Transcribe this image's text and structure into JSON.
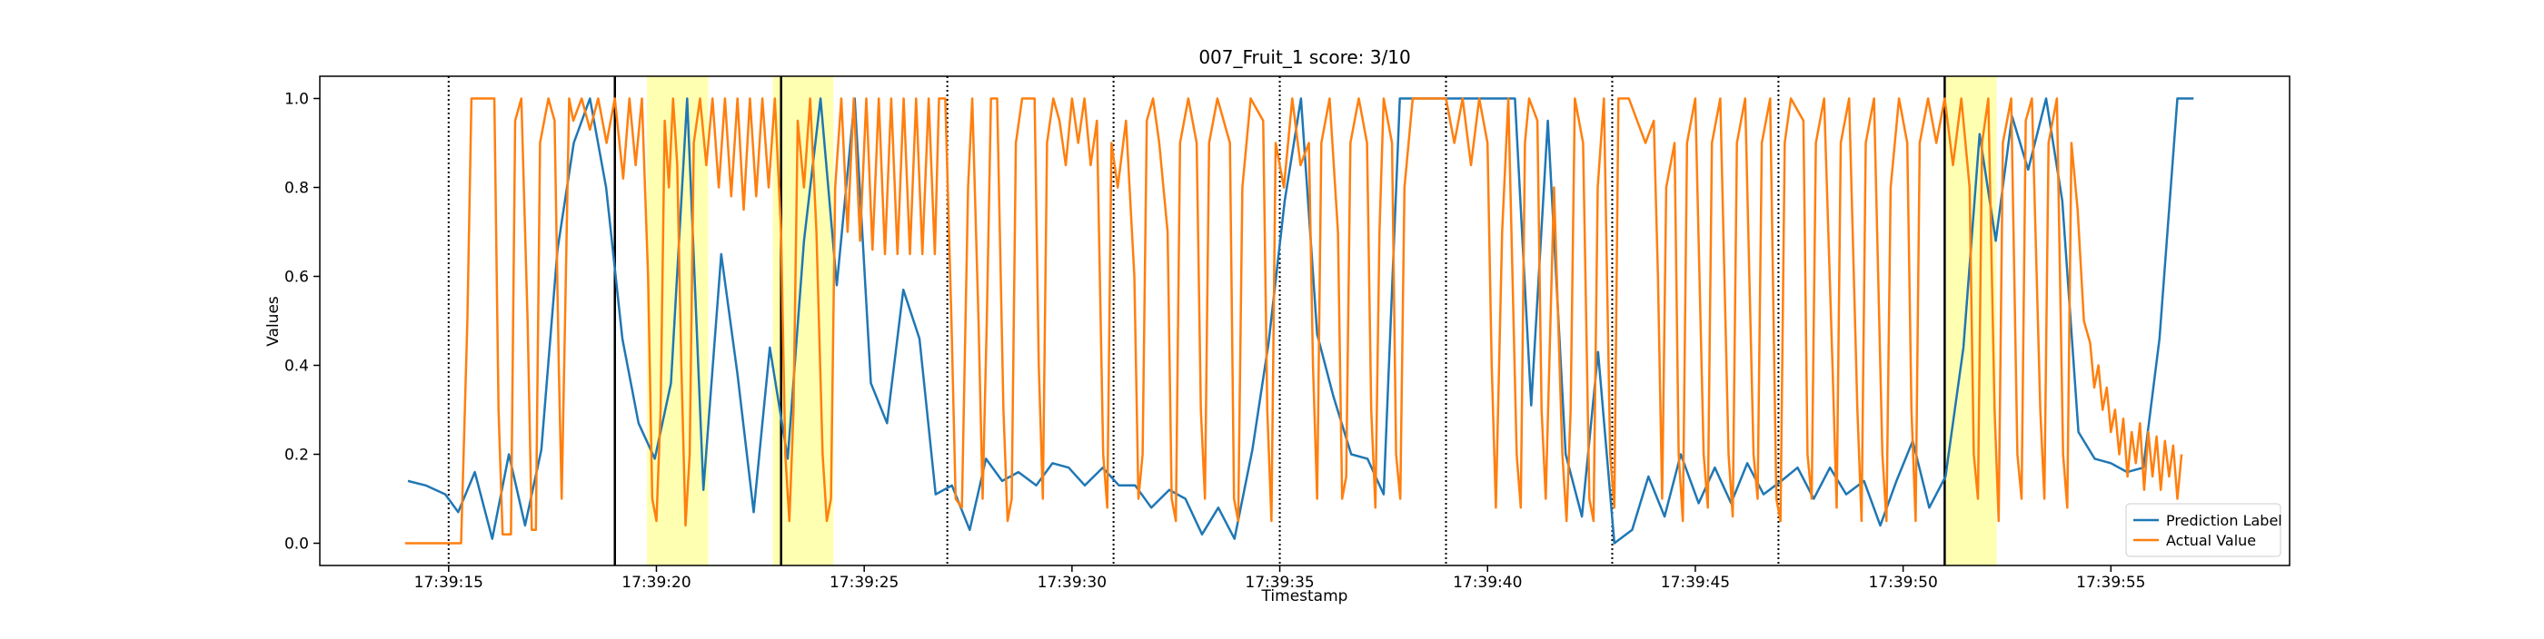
{
  "chart_data": {
    "type": "line",
    "title": "007_Fruit_1 score: 3/10",
    "x_label": "Timestamp",
    "y_label": "Values",
    "xlim": [
      11.9,
      59.3
    ],
    "ylim": [
      -0.05,
      1.05
    ],
    "xticks": [
      {
        "value": 15,
        "label": "17:39:15"
      },
      {
        "value": 20,
        "label": "17:39:20"
      },
      {
        "value": 25,
        "label": "17:39:25"
      },
      {
        "value": 30,
        "label": "17:39:30"
      },
      {
        "value": 35,
        "label": "17:39:35"
      },
      {
        "value": 40,
        "label": "17:39:40"
      },
      {
        "value": 45,
        "label": "17:39:45"
      },
      {
        "value": 50,
        "label": "17:39:50"
      },
      {
        "value": 55,
        "label": "17:39:55"
      }
    ],
    "yticks": [
      {
        "value": 0,
        "label": "0.0"
      },
      0.2,
      0.4,
      0.6,
      0.8,
      {
        "value": 1,
        "label": "1.0"
      }
    ],
    "legend": "lower right",
    "dotted_lines": [
      15,
      27,
      31,
      35,
      39,
      43,
      47
    ],
    "solid_lines": [
      19,
      23,
      51
    ],
    "highlight_spans": [
      [
        19.77,
        21.25
      ],
      [
        22.8,
        24.26
      ],
      [
        51.0,
        52.25
      ]
    ],
    "series": [
      {
        "name": "Prediction Label",
        "color": "#1f77b4",
        "x": [
          14.02,
          14.45,
          14.92,
          15.23,
          15.63,
          16.05,
          16.45,
          16.84,
          17.23,
          17.62,
          18.01,
          18.4,
          18.79,
          19.18,
          19.57,
          19.96,
          20.35,
          20.74,
          21.13,
          21.56,
          21.95,
          22.34,
          22.73,
          23.16,
          23.55,
          23.95,
          24.34,
          24.77,
          25.16,
          25.55,
          25.94,
          26.33,
          26.72,
          27.11,
          27.54,
          27.93,
          28.32,
          28.71,
          29.14,
          29.53,
          29.92,
          30.31,
          30.74,
          31.13,
          31.52,
          31.91,
          32.34,
          32.73,
          33.13,
          33.52,
          33.91,
          34.34,
          34.73,
          35.12,
          35.51,
          35.9,
          36.29,
          36.72,
          37.11,
          37.5,
          37.89,
          38.32,
          38.71,
          39.1,
          39.49,
          39.88,
          40.27,
          40.66,
          41.05,
          41.45,
          41.88,
          42.27,
          42.66,
          43.05,
          43.48,
          43.87,
          44.26,
          44.65,
          45.08,
          45.47,
          45.86,
          46.25,
          46.64,
          47.07,
          47.46,
          47.85,
          48.24,
          48.63,
          49.06,
          49.45,
          49.84,
          50.23,
          50.63,
          51.02,
          51.45,
          51.84,
          52.23,
          52.62,
          53.01,
          53.44,
          53.83,
          54.22,
          54.61,
          55.0,
          55.39,
          55.78,
          56.17,
          56.6,
          56.99
        ],
        "values": [
          0.14,
          0.13,
          0.11,
          0.07,
          0.16,
          0.01,
          0.2,
          0.04,
          0.21,
          0.66,
          0.9,
          1.0,
          0.8,
          0.46,
          0.27,
          0.19,
          0.36,
          1.0,
          0.12,
          0.65,
          0.38,
          0.07,
          0.44,
          0.19,
          0.68,
          1.0,
          0.58,
          1.0,
          0.36,
          0.27,
          0.57,
          0.46,
          0.11,
          0.13,
          0.03,
          0.19,
          0.14,
          0.16,
          0.13,
          0.18,
          0.17,
          0.13,
          0.17,
          0.13,
          0.13,
          0.08,
          0.12,
          0.1,
          0.02,
          0.08,
          0.01,
          0.21,
          0.45,
          0.77,
          1.0,
          0.47,
          0.33,
          0.2,
          0.19,
          0.11,
          1.0,
          1.0,
          1.0,
          1.0,
          1.0,
          1.0,
          1.0,
          1.0,
          0.31,
          0.95,
          0.2,
          0.06,
          0.43,
          0.0,
          0.03,
          0.15,
          0.06,
          0.2,
          0.09,
          0.17,
          0.09,
          0.18,
          0.11,
          0.14,
          0.17,
          0.1,
          0.17,
          0.11,
          0.14,
          0.04,
          0.14,
          0.23,
          0.08,
          0.15,
          0.44,
          0.92,
          0.68,
          0.96,
          0.84,
          1.0,
          0.77,
          0.25,
          0.19,
          0.18,
          0.16,
          0.17,
          0.46,
          1.0,
          1.0
        ]
      },
      {
        "name": "Actual Value",
        "color": "#ff7f0e",
        "x": [
          13.95,
          15.3,
          15.45,
          15.55,
          16.1,
          16.2,
          16.3,
          16.5,
          16.6,
          16.75,
          16.9,
          17.0,
          17.1,
          17.2,
          17.4,
          17.55,
          17.65,
          17.72,
          17.8,
          17.9,
          18.0,
          18.2,
          18.4,
          18.6,
          18.8,
          19.0,
          19.2,
          19.35,
          19.5,
          19.65,
          19.8,
          19.9,
          20.0,
          20.1,
          20.2,
          20.3,
          20.4,
          20.5,
          20.6,
          20.7,
          20.8,
          20.9,
          21.05,
          21.2,
          21.35,
          21.5,
          21.65,
          21.8,
          21.95,
          22.1,
          22.25,
          22.4,
          22.55,
          22.7,
          22.85,
          23.0,
          23.1,
          23.2,
          23.3,
          23.4,
          23.55,
          23.7,
          23.85,
          24.0,
          24.1,
          24.2,
          24.3,
          24.45,
          24.6,
          24.75,
          24.9,
          25.05,
          25.2,
          25.35,
          25.5,
          25.65,
          25.8,
          25.95,
          26.1,
          26.25,
          26.4,
          26.55,
          26.7,
          26.8,
          26.95,
          27.1,
          27.2,
          27.35,
          27.5,
          27.6,
          27.75,
          27.85,
          27.95,
          28.05,
          28.2,
          28.35,
          28.45,
          28.55,
          28.65,
          28.8,
          29.1,
          29.2,
          29.3,
          29.4,
          29.55,
          29.7,
          29.85,
          30.0,
          30.15,
          30.3,
          30.45,
          30.6,
          30.75,
          30.85,
          30.95,
          31.1,
          31.3,
          31.5,
          31.6,
          31.7,
          31.8,
          31.95,
          32.1,
          32.3,
          32.4,
          32.5,
          32.6,
          32.8,
          33.0,
          33.1,
          33.2,
          33.3,
          33.5,
          33.8,
          33.9,
          34.0,
          34.1,
          34.3,
          34.6,
          34.7,
          34.8,
          34.9,
          35.1,
          35.3,
          35.5,
          35.7,
          35.8,
          35.9,
          36.0,
          36.2,
          36.4,
          36.5,
          36.6,
          36.7,
          36.9,
          37.1,
          37.2,
          37.3,
          37.4,
          37.5,
          37.7,
          37.8,
          37.9,
          38.0,
          38.2,
          39.0,
          39.2,
          39.4,
          39.6,
          39.8,
          40.0,
          40.1,
          40.2,
          40.35,
          40.5,
          40.7,
          40.8,
          40.9,
          41.0,
          41.2,
          41.3,
          41.4,
          41.6,
          41.8,
          41.9,
          42.0,
          42.1,
          42.3,
          42.45,
          42.55,
          42.65,
          42.8,
          42.95,
          43.05,
          43.15,
          43.4,
          43.6,
          43.8,
          44.0,
          44.1,
          44.2,
          44.3,
          44.5,
          44.6,
          44.7,
          44.8,
          45.0,
          45.2,
          45.3,
          45.4,
          45.6,
          45.8,
          45.9,
          46.0,
          46.2,
          46.4,
          46.5,
          46.6,
          46.8,
          46.95,
          47.05,
          47.15,
          47.3,
          47.6,
          47.7,
          47.8,
          47.9,
          48.1,
          48.3,
          48.4,
          48.5,
          48.7,
          48.9,
          49.0,
          49.1,
          49.3,
          49.5,
          49.6,
          49.7,
          49.9,
          50.1,
          50.2,
          50.3,
          50.4,
          50.6,
          50.8,
          51.0,
          51.2,
          51.4,
          51.6,
          51.7,
          51.8,
          51.9,
          52.05,
          52.2,
          52.3,
          52.4,
          52.6,
          52.75,
          52.85,
          52.95,
          53.1,
          53.3,
          53.4,
          53.5,
          53.7,
          53.85,
          53.95,
          54.05,
          54.2,
          54.35,
          54.5,
          54.6,
          54.7,
          54.8,
          54.9,
          55.0,
          55.1,
          55.2,
          55.3,
          55.4,
          55.5,
          55.6,
          55.7,
          55.8,
          55.9,
          56.0,
          56.1,
          56.2,
          56.3,
          56.4,
          56.5,
          56.6,
          56.7
        ],
        "values": [
          0,
          0,
          0.5,
          1.0,
          1.0,
          0.3,
          0.02,
          0.02,
          0.95,
          1.0,
          0.5,
          0.03,
          0.03,
          0.9,
          1.0,
          0.95,
          0.4,
          0.1,
          0.5,
          1.0,
          0.95,
          1.0,
          0.93,
          1.0,
          0.9,
          1.0,
          0.82,
          1.0,
          0.85,
          1.0,
          0.6,
          0.1,
          0.05,
          0.3,
          0.95,
          0.8,
          1.0,
          0.85,
          0.4,
          0.04,
          0.2,
          0.9,
          1.0,
          0.85,
          1.0,
          0.8,
          1.0,
          0.78,
          1.0,
          0.75,
          1.0,
          0.78,
          1.0,
          0.8,
          1.0,
          0.7,
          0.2,
          0.05,
          0.3,
          0.95,
          0.8,
          1.0,
          0.7,
          0.2,
          0.05,
          0.1,
          0.8,
          1.0,
          0.7,
          1.0,
          0.68,
          1.0,
          0.66,
          1.0,
          0.65,
          1.0,
          0.65,
          1.0,
          0.65,
          1.0,
          0.65,
          1.0,
          0.65,
          1.0,
          1.0,
          0.5,
          0.1,
          0.08,
          0.8,
          1.0,
          0.5,
          0.1,
          0.5,
          1.0,
          1.0,
          0.3,
          0.05,
          0.1,
          0.9,
          1.0,
          1.0,
          0.4,
          0.1,
          0.9,
          1.0,
          0.95,
          0.85,
          1.0,
          0.9,
          1.0,
          0.85,
          0.95,
          0.2,
          0.08,
          0.9,
          0.8,
          0.95,
          0.6,
          0.1,
          0.2,
          0.95,
          1.0,
          0.9,
          0.7,
          0.1,
          0.05,
          0.9,
          1.0,
          0.9,
          0.3,
          0.1,
          0.9,
          1.0,
          0.9,
          0.1,
          0.05,
          0.8,
          1.0,
          0.95,
          0.3,
          0.05,
          0.9,
          0.8,
          1.0,
          0.85,
          0.9,
          0.4,
          0.1,
          0.9,
          1.0,
          0.7,
          0.1,
          0.15,
          0.9,
          1.0,
          0.9,
          0.3,
          0.08,
          0.7,
          1.0,
          0.9,
          0.2,
          0.1,
          0.8,
          1.0,
          1.0,
          0.9,
          1.0,
          0.85,
          1.0,
          0.9,
          0.4,
          0.08,
          0.7,
          1.0,
          0.2,
          0.08,
          0.9,
          1.0,
          0.95,
          0.3,
          0.1,
          0.8,
          0.2,
          0.05,
          0.3,
          1.0,
          0.9,
          0.1,
          0.05,
          0.8,
          1.0,
          0.2,
          0.08,
          1.0,
          1.0,
          0.95,
          0.9,
          0.95,
          0.6,
          0.1,
          0.8,
          0.9,
          0.2,
          0.05,
          0.9,
          1.0,
          0.2,
          0.08,
          0.9,
          1.0,
          0.2,
          0.06,
          0.9,
          1.0,
          0.2,
          0.1,
          0.9,
          1.0,
          0.1,
          0.05,
          0.9,
          1.0,
          0.95,
          0.2,
          0.1,
          0.9,
          1.0,
          0.4,
          0.08,
          0.9,
          1.0,
          0.3,
          0.05,
          0.9,
          1.0,
          0.2,
          0.05,
          0.8,
          1.0,
          0.9,
          0.3,
          0.05,
          0.9,
          1.0,
          0.9,
          1.0,
          0.85,
          1.0,
          0.8,
          0.2,
          0.1,
          0.9,
          1.0,
          0.3,
          0.05,
          0.9,
          1.0,
          0.2,
          0.1,
          0.95,
          1.0,
          0.3,
          0.1,
          0.9,
          1.0,
          0.2,
          0.08,
          0.9,
          0.75,
          0.5,
          0.45,
          0.35,
          0.4,
          0.3,
          0.35,
          0.25,
          0.3,
          0.2,
          0.28,
          0.15,
          0.25,
          0.18,
          0.27,
          0.12,
          0.25,
          0.15,
          0.24,
          0.12,
          0.23,
          0.15,
          0.22,
          0.1,
          0.2
        ]
      }
    ]
  }
}
